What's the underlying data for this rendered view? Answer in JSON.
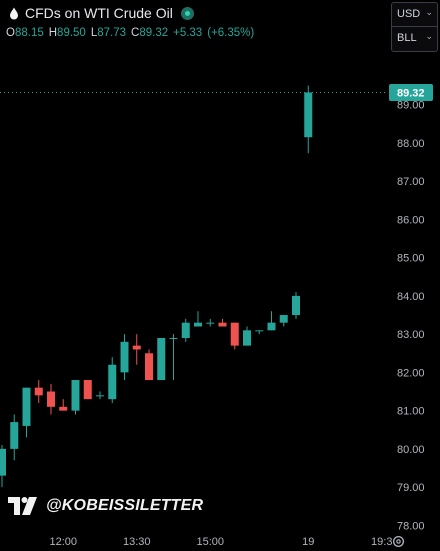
{
  "header": {
    "title": "CFDs on WTI Crude Oil",
    "ohlc": {
      "open_label": "O",
      "open": "88.15",
      "high_label": "H",
      "high": "89.50",
      "low_label": "L",
      "low": "87.73",
      "close_label": "C",
      "close": "89.32",
      "change": "+5.33",
      "change_pct": "(+6.35%)"
    }
  },
  "controls": {
    "currency": "USD",
    "unit": "BLL"
  },
  "watermark": {
    "text": "@KOBEISSILETTER"
  },
  "colors": {
    "up": "#26a69a",
    "down": "#ef5350",
    "background": "#000000",
    "axis_text": "#b2b5be",
    "last_price_bg": "#26a69a"
  },
  "icons": [
    "oil-drop-icon",
    "market-status-icon",
    "chevron-down-icon",
    "tradingview-logo-icon",
    "gear-icon"
  ],
  "chart_data": {
    "type": "candlestick",
    "title": "CFDs on WTI Crude Oil",
    "last_price": "89.32",
    "y_ticks": [
      "78.00",
      "79.00",
      "80.00",
      "81.00",
      "82.00",
      "83.00",
      "84.00",
      "85.00",
      "86.00",
      "87.00",
      "88.00",
      "89.00"
    ],
    "ylim": [
      77.8,
      90.3
    ],
    "x_ticks": [
      "12:00",
      "13:30",
      "15:00",
      "19",
      "19:3"
    ],
    "x_tick_index": [
      5,
      11,
      17,
      25,
      31
    ],
    "slot_count": 33,
    "candles": [
      {
        "i": 0,
        "o": 79.3,
        "h": 80.1,
        "l": 79.0,
        "c": 80.0
      },
      {
        "i": 1,
        "o": 80.0,
        "h": 80.9,
        "l": 79.7,
        "c": 80.7
      },
      {
        "i": 2,
        "o": 80.6,
        "h": 81.6,
        "l": 80.3,
        "c": 81.6
      },
      {
        "i": 3,
        "o": 81.6,
        "h": 81.8,
        "l": 81.2,
        "c": 81.4
      },
      {
        "i": 4,
        "o": 81.5,
        "h": 81.7,
        "l": 80.9,
        "c": 81.1
      },
      {
        "i": 5,
        "o": 81.1,
        "h": 81.3,
        "l": 81.0,
        "c": 81.0
      },
      {
        "i": 6,
        "o": 81.0,
        "h": 81.8,
        "l": 80.9,
        "c": 81.8
      },
      {
        "i": 7,
        "o": 81.8,
        "h": 81.8,
        "l": 81.3,
        "c": 81.3
      },
      {
        "i": 8,
        "o": 81.4,
        "h": 81.5,
        "l": 81.3,
        "c": 81.4
      },
      {
        "i": 9,
        "o": 81.3,
        "h": 82.4,
        "l": 81.2,
        "c": 82.2
      },
      {
        "i": 10,
        "o": 82.0,
        "h": 83.0,
        "l": 81.8,
        "c": 82.8
      },
      {
        "i": 11,
        "o": 82.7,
        "h": 83.0,
        "l": 82.2,
        "c": 82.6
      },
      {
        "i": 12,
        "o": 82.5,
        "h": 82.6,
        "l": 81.8,
        "c": 81.8
      },
      {
        "i": 13,
        "o": 81.8,
        "h": 82.9,
        "l": 81.8,
        "c": 82.9
      },
      {
        "i": 14,
        "o": 82.9,
        "h": 83.0,
        "l": 81.8,
        "c": 82.9
      },
      {
        "i": 15,
        "o": 82.9,
        "h": 83.4,
        "l": 82.8,
        "c": 83.3
      },
      {
        "i": 16,
        "o": 83.2,
        "h": 83.6,
        "l": 83.2,
        "c": 83.3
      },
      {
        "i": 17,
        "o": 83.3,
        "h": 83.4,
        "l": 83.2,
        "c": 83.3
      },
      {
        "i": 18,
        "o": 83.3,
        "h": 83.4,
        "l": 83.2,
        "c": 83.2
      },
      {
        "i": 19,
        "o": 83.3,
        "h": 83.3,
        "l": 82.6,
        "c": 82.7
      },
      {
        "i": 20,
        "o": 82.7,
        "h": 83.2,
        "l": 82.7,
        "c": 83.1
      },
      {
        "i": 21,
        "o": 83.1,
        "h": 83.1,
        "l": 83.0,
        "c": 83.1
      },
      {
        "i": 22,
        "o": 83.1,
        "h": 83.6,
        "l": 83.1,
        "c": 83.3
      },
      {
        "i": 23,
        "o": 83.3,
        "h": 83.5,
        "l": 83.2,
        "c": 83.5
      },
      {
        "i": 24,
        "o": 83.5,
        "h": 84.1,
        "l": 83.4,
        "c": 84.0
      },
      {
        "i": 25,
        "o": 88.15,
        "h": 89.5,
        "l": 87.73,
        "c": 89.32
      }
    ]
  }
}
